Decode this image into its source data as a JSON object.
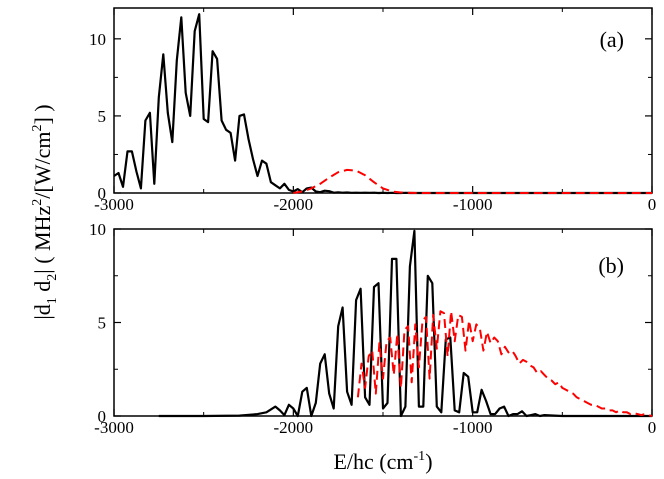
{
  "chart_data": [
    {
      "panel_label": "(a)",
      "type": "line",
      "xlim": [
        -3000,
        0
      ],
      "ylim": [
        0,
        12
      ],
      "x_ticks": [
        -3000,
        -2000,
        -1000,
        0
      ],
      "x_tick_labels": [
        "-3000",
        "-2000",
        "-1000",
        "0"
      ],
      "y_ticks": [
        0,
        5,
        10
      ],
      "y_tick_labels": [
        "0",
        "5",
        "10"
      ],
      "grid": false,
      "series": [
        {
          "color": "#000000",
          "style": "solid",
          "x": [
            -3000,
            -2975,
            -2950,
            -2925,
            -2900,
            -2875,
            -2850,
            -2825,
            -2800,
            -2775,
            -2750,
            -2725,
            -2700,
            -2675,
            -2650,
            -2625,
            -2600,
            -2575,
            -2550,
            -2525,
            -2500,
            -2475,
            -2450,
            -2425,
            -2400,
            -2375,
            -2350,
            -2325,
            -2300,
            -2275,
            -2250,
            -2225,
            -2200,
            -2175,
            -2150,
            -2125,
            -2100,
            -2075,
            -2050,
            -2025,
            -2000,
            -1975,
            -1950,
            -1925,
            -1900,
            -1875,
            -1850,
            -1825,
            -1800,
            -1775,
            -1750,
            -1725,
            -1700,
            -1675,
            -1650,
            -1625,
            -1600,
            -1575,
            -1550,
            -1525,
            -1500,
            -1475,
            -1450,
            -1425,
            -1400,
            -1375,
            -1350,
            -1325,
            -1300,
            -1275,
            -1250,
            -1225,
            -1200,
            -1175,
            -1150,
            -1125,
            -1100,
            -1000,
            0
          ],
          "y": [
            1.1,
            1.3,
            0.4,
            2.7,
            2.7,
            1.4,
            0.3,
            4.7,
            5.2,
            0.6,
            6.2,
            9.0,
            5.2,
            3.3,
            8.6,
            11.4,
            6.5,
            5.0,
            10.5,
            11.6,
            4.8,
            4.6,
            9.2,
            8.7,
            4.7,
            4.1,
            3.9,
            2.1,
            5.0,
            5.1,
            3.5,
            2.2,
            1.1,
            2.1,
            1.9,
            0.7,
            0.5,
            0.3,
            0.6,
            0.2,
            0.1,
            0.25,
            0.05,
            0.3,
            0.35,
            0.1,
            0.05,
            0.15,
            0.12,
            0.02,
            0.04,
            0.02,
            0.03,
            0.01,
            0.02,
            0.01,
            0.02,
            0.01,
            0.02,
            0.0,
            0.01,
            0.0,
            0.01,
            0.0,
            0.0,
            0.01,
            0.0,
            0.0,
            0.0,
            0.0,
            0.0,
            0.0,
            0.0,
            0.0,
            0.0,
            0.0,
            0.0,
            0.0,
            0.0
          ]
        },
        {
          "color": "#ff0000",
          "style": "dashed",
          "x": [
            -2000,
            -1950,
            -1900,
            -1850,
            -1800,
            -1750,
            -1700,
            -1650,
            -1600,
            -1550,
            -1500,
            -1450,
            -1400,
            -1300,
            -1000,
            0
          ],
          "y": [
            0.0,
            0.1,
            0.3,
            0.6,
            1.0,
            1.35,
            1.5,
            1.45,
            1.15,
            0.7,
            0.3,
            0.1,
            0.03,
            0.0,
            0.0,
            0.0
          ]
        }
      ]
    },
    {
      "panel_label": "(b)",
      "type": "line",
      "xlim": [
        -3000,
        0
      ],
      "ylim": [
        0,
        10
      ],
      "x_ticks": [
        -3000,
        -2000,
        -1000,
        0
      ],
      "x_tick_labels": [
        "-3000",
        "-2000",
        "-1000",
        "0"
      ],
      "y_ticks": [
        0,
        5,
        10
      ],
      "y_tick_labels": [
        "0",
        "5",
        "10"
      ],
      "xlabel": "E/hc (cm",
      "xlabel_sup": "-1",
      "xlabel_end": ")",
      "ylabel_parts": [
        "|d",
        "1",
        " d",
        "2",
        "| ( MHz",
        "2",
        "/[W/cm",
        "2",
        "] )"
      ],
      "grid": false,
      "series": [
        {
          "color": "#000000",
          "style": "solid",
          "x": [
            -2750,
            -2500,
            -2300,
            -2200,
            -2150,
            -2100,
            -2075,
            -2050,
            -2025,
            -2000,
            -1975,
            -1950,
            -1925,
            -1900,
            -1875,
            -1850,
            -1825,
            -1800,
            -1775,
            -1750,
            -1725,
            -1700,
            -1675,
            -1650,
            -1625,
            -1600,
            -1575,
            -1550,
            -1525,
            -1500,
            -1475,
            -1450,
            -1425,
            -1400,
            -1375,
            -1350,
            -1325,
            -1300,
            -1275,
            -1250,
            -1225,
            -1200,
            -1175,
            -1150,
            -1125,
            -1100,
            -1075,
            -1050,
            -1025,
            -1000,
            -975,
            -950,
            -925,
            -900,
            -875,
            -850,
            -825,
            -800,
            -775,
            -750,
            -725,
            -700,
            -675,
            -650,
            -625,
            -600,
            -500,
            0
          ],
          "y": [
            0.0,
            0.0,
            0.02,
            0.1,
            0.2,
            0.5,
            0.3,
            0.05,
            0.6,
            0.4,
            0.0,
            1.3,
            1.5,
            0.0,
            0.7,
            2.8,
            3.3,
            1.2,
            0.4,
            4.8,
            5.8,
            1.3,
            0.6,
            6.2,
            6.8,
            1.0,
            0.6,
            6.9,
            7.1,
            0.4,
            0.7,
            8.4,
            8.4,
            0.0,
            0.5,
            8.0,
            9.9,
            0.5,
            0.5,
            7.5,
            7.1,
            0.5,
            0.2,
            4.1,
            4.2,
            0.3,
            0.2,
            2.3,
            2.1,
            0.2,
            0.2,
            1.4,
            0.8,
            0.1,
            0.1,
            0.4,
            0.5,
            0.0,
            0.1,
            0.1,
            0.25,
            0.0,
            0.05,
            0.1,
            0.0,
            0.05,
            0.0,
            0.0
          ]
        },
        {
          "color": "#ff0000",
          "style": "dashed",
          "x": [
            -1640,
            -1620,
            -1600,
            -1580,
            -1560,
            -1540,
            -1520,
            -1500,
            -1480,
            -1460,
            -1440,
            -1420,
            -1400,
            -1380,
            -1360,
            -1340,
            -1320,
            -1300,
            -1280,
            -1260,
            -1240,
            -1220,
            -1200,
            -1180,
            -1160,
            -1140,
            -1120,
            -1100,
            -1080,
            -1060,
            -1040,
            -1020,
            -1000,
            -980,
            -960,
            -940,
            -920,
            -900,
            -880,
            -860,
            -840,
            -820,
            -800,
            -780,
            -760,
            -740,
            -720,
            -700,
            -680,
            -660,
            -640,
            -620,
            -600,
            -580,
            -560,
            -540,
            -520,
            -500,
            -480,
            -460,
            -440,
            -420,
            -400,
            -380,
            -360,
            -340,
            -320,
            -300,
            -280,
            -260,
            -240,
            -220,
            -200,
            -180,
            -160,
            -140,
            -120,
            -100,
            -80,
            -60,
            -40,
            -20,
            0
          ],
          "y": [
            1.0,
            2.8,
            1.5,
            3.2,
            3.5,
            1.2,
            3.9,
            2.0,
            4.0,
            4.2,
            2.2,
            4.4,
            1.5,
            4.6,
            4.8,
            1.8,
            4.9,
            2.6,
            5.1,
            5.3,
            2.0,
            5.4,
            3.6,
            5.6,
            5.5,
            3.2,
            5.6,
            4.0,
            5.4,
            5.3,
            3.5,
            5.1,
            4.0,
            4.9,
            4.7,
            3.5,
            4.5,
            3.9,
            4.2,
            4.0,
            3.3,
            3.7,
            3.4,
            3.5,
            3.2,
            2.8,
            3.0,
            2.9,
            2.7,
            2.6,
            2.3,
            2.4,
            2.2,
            2.0,
            1.9,
            1.7,
            1.8,
            1.5,
            1.4,
            1.3,
            1.2,
            1.0,
            0.9,
            0.8,
            0.7,
            0.6,
            0.6,
            0.5,
            0.4,
            0.4,
            0.3,
            0.3,
            0.2,
            0.3,
            0.2,
            0.2,
            0.1,
            0.15,
            0.1,
            0.05,
            0.1,
            0.05,
            0.0
          ]
        }
      ]
    }
  ]
}
